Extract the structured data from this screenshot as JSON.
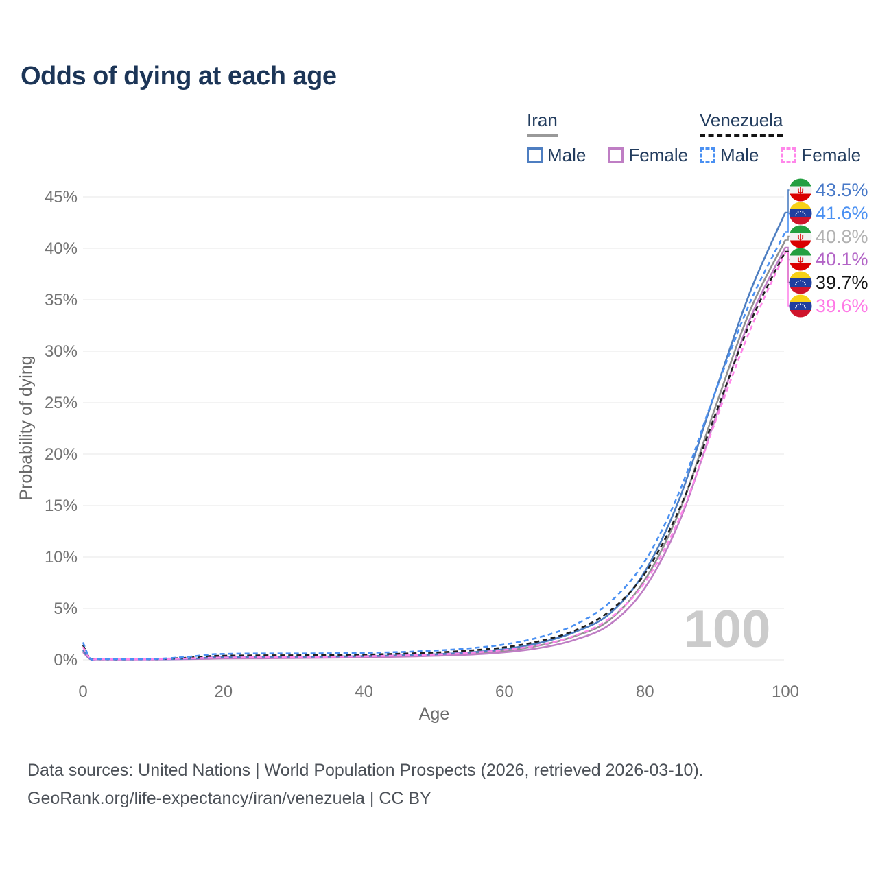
{
  "title": "Odds of dying at each age",
  "legend": {
    "groups": [
      {
        "country": "Iran",
        "style": "solid",
        "underline_color": "#999999",
        "items": [
          {
            "label": "Male",
            "color": "#4e7ec1"
          },
          {
            "label": "Female",
            "color": "#bf7ec4"
          }
        ]
      },
      {
        "country": "Venezuela",
        "style": "dashed",
        "underline_color": "#141414",
        "items": [
          {
            "label": "Male",
            "color": "#4a90f2"
          },
          {
            "label": "Female",
            "color": "#ff86ea"
          }
        ]
      }
    ]
  },
  "watermark": "100",
  "footer": {
    "line1": "Data sources: United Nations | World Population Prospects (2026, retrieved 2026-03-10).",
    "line2": "GeoRank.org/life-expectancy/iran/venezuela | CC BY"
  },
  "chart_data": {
    "type": "line",
    "title": "Odds of dying at each age",
    "xlabel": "Age",
    "ylabel": "Probability of dying",
    "xlim": [
      0,
      100
    ],
    "ylim_pct": [
      0,
      45
    ],
    "x_ticks": [
      0,
      20,
      40,
      60,
      80,
      100
    ],
    "y_ticks_pct": [
      0,
      5,
      10,
      15,
      20,
      25,
      30,
      35,
      40,
      45
    ],
    "grid": "horizontal",
    "x": [
      0,
      1,
      2,
      3,
      4,
      5,
      10,
      15,
      18,
      20,
      25,
      30,
      35,
      40,
      45,
      50,
      55,
      60,
      65,
      70,
      75,
      80,
      85,
      90,
      95,
      100
    ],
    "series": [
      {
        "name": "Iran — Male",
        "country": "Iran",
        "sex": "Male",
        "flag": "iran",
        "color": "#4e7ec1",
        "label": "43.5%",
        "label_color": "#4879c8",
        "dash": false,
        "values": [
          0.95,
          0.1,
          0.07,
          0.06,
          0.05,
          0.05,
          0.06,
          0.1,
          0.22,
          0.28,
          0.3,
          0.3,
          0.32,
          0.36,
          0.43,
          0.54,
          0.72,
          1.05,
          1.65,
          2.7,
          4.5,
          8.6,
          15.8,
          26.0,
          35.8,
          43.5
        ]
      },
      {
        "name": "Venezuela — Male",
        "country": "Venezuela",
        "sex": "Male",
        "flag": "venezuela",
        "color": "#4a90f2",
        "label": "41.6%",
        "label_color": "#4a90f2",
        "dash": true,
        "values": [
          1.7,
          0.15,
          0.1,
          0.08,
          0.07,
          0.07,
          0.08,
          0.3,
          0.52,
          0.58,
          0.62,
          0.62,
          0.64,
          0.68,
          0.76,
          0.9,
          1.12,
          1.5,
          2.2,
          3.4,
          5.6,
          9.6,
          16.5,
          26.0,
          34.8,
          41.6
        ]
      },
      {
        "name": "Iran — Both sexes",
        "country": "Iran",
        "sex": "Both",
        "flag": "iran",
        "color": "#919191",
        "label": "40.8%",
        "label_color": "#b2b2b2",
        "dash": false,
        "values": [
          0.85,
          0.09,
          0.06,
          0.05,
          0.05,
          0.04,
          0.05,
          0.09,
          0.17,
          0.21,
          0.23,
          0.24,
          0.26,
          0.3,
          0.36,
          0.46,
          0.61,
          0.88,
          1.4,
          2.3,
          3.9,
          7.8,
          14.6,
          24.5,
          34.0,
          40.8
        ]
      },
      {
        "name": "Iran — Female",
        "country": "Iran",
        "sex": "Female",
        "flag": "iran",
        "color": "#bf7ec4",
        "label": "40.1%",
        "label_color": "#b263c6",
        "dash": false,
        "values": [
          0.75,
          0.08,
          0.05,
          0.04,
          0.04,
          0.04,
          0.04,
          0.07,
          0.11,
          0.13,
          0.15,
          0.17,
          0.2,
          0.24,
          0.3,
          0.39,
          0.51,
          0.73,
          1.16,
          1.95,
          3.45,
          7.0,
          13.6,
          23.4,
          33.2,
          40.1
        ]
      },
      {
        "name": "Venezuela — Both sexes",
        "country": "Venezuela",
        "sex": "Both",
        "flag": "venezuela",
        "color": "#1f1f1f",
        "label": "39.7%",
        "label_color": "#141414",
        "dash": true,
        "values": [
          1.45,
          0.13,
          0.09,
          0.07,
          0.06,
          0.06,
          0.07,
          0.21,
          0.36,
          0.4,
          0.43,
          0.44,
          0.46,
          0.51,
          0.59,
          0.71,
          0.91,
          1.22,
          1.82,
          2.85,
          4.75,
          8.4,
          14.8,
          23.8,
          32.8,
          39.7
        ]
      },
      {
        "name": "Venezuela — Female",
        "country": "Venezuela",
        "sex": "Female",
        "flag": "venezuela",
        "color": "#ff86ea",
        "label": "39.6%",
        "label_color": "#ff79e6",
        "dash": true,
        "values": [
          1.25,
          0.11,
          0.08,
          0.06,
          0.05,
          0.05,
          0.06,
          0.13,
          0.2,
          0.22,
          0.25,
          0.27,
          0.3,
          0.35,
          0.42,
          0.52,
          0.68,
          0.97,
          1.45,
          2.35,
          4.05,
          7.55,
          13.9,
          23.1,
          32.1,
          39.6
        ]
      }
    ]
  }
}
